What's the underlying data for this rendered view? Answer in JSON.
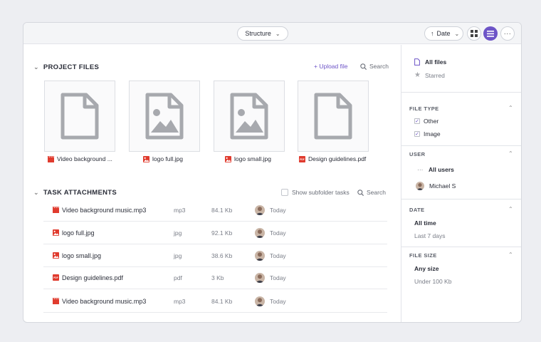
{
  "toolbar": {
    "structure_label": "Structure",
    "sort_label": "Date",
    "more_label": "···"
  },
  "project_files": {
    "title": "PROJECT FILES",
    "upload_label": "+ Upload file",
    "search_label": "Search",
    "tiles": [
      {
        "kind": "video",
        "label": "Video background ..."
      },
      {
        "kind": "image",
        "label": "logo full.jpg"
      },
      {
        "kind": "image",
        "label": "logo small.jpg"
      },
      {
        "kind": "pdf",
        "label": "Design guidelines.pdf"
      }
    ]
  },
  "task_attachments": {
    "title": "TASK ATTACHMENTS",
    "subfolder_label": "Show subfolder tasks",
    "search_label": "Search",
    "rows": [
      {
        "kind": "video",
        "name": "Video background music.mp3",
        "type": "mp3",
        "size": "84.1 Kb",
        "when": "Today"
      },
      {
        "kind": "image",
        "name": "logo full.jpg",
        "type": "jpg",
        "size": "92.1 Kb",
        "when": "Today"
      },
      {
        "kind": "image",
        "name": "logo small.jpg",
        "type": "jpg",
        "size": "38.6 Kb",
        "when": "Today"
      },
      {
        "kind": "pdf",
        "name": "Design guidelines.pdf",
        "type": "pdf",
        "size": "3 Kb",
        "when": "Today"
      },
      {
        "kind": "video",
        "name": "Video background music.mp3",
        "type": "mp3",
        "size": "84.1 Kb",
        "when": "Today"
      }
    ]
  },
  "sidebar": {
    "all_files": "All files",
    "starred": "Starred",
    "file_type": {
      "title": "FILE TYPE",
      "options": [
        "Other",
        "Image"
      ]
    },
    "user": {
      "title": "USER",
      "all_users": "All users",
      "user_name": "Michael S",
      "all_users_icon": "···"
    },
    "date": {
      "title": "DATE",
      "options": [
        "All time",
        "Last 7 days"
      ]
    },
    "file_size": {
      "title": "FILE SIZE",
      "options": [
        "Any size",
        "Under 100 Kb"
      ]
    }
  },
  "colors": {
    "accent": "#6d54c7",
    "file_red": "#e03b2e",
    "placeholder_gray": "#a7a9ae"
  },
  "icon_pdf_text": "PDF"
}
